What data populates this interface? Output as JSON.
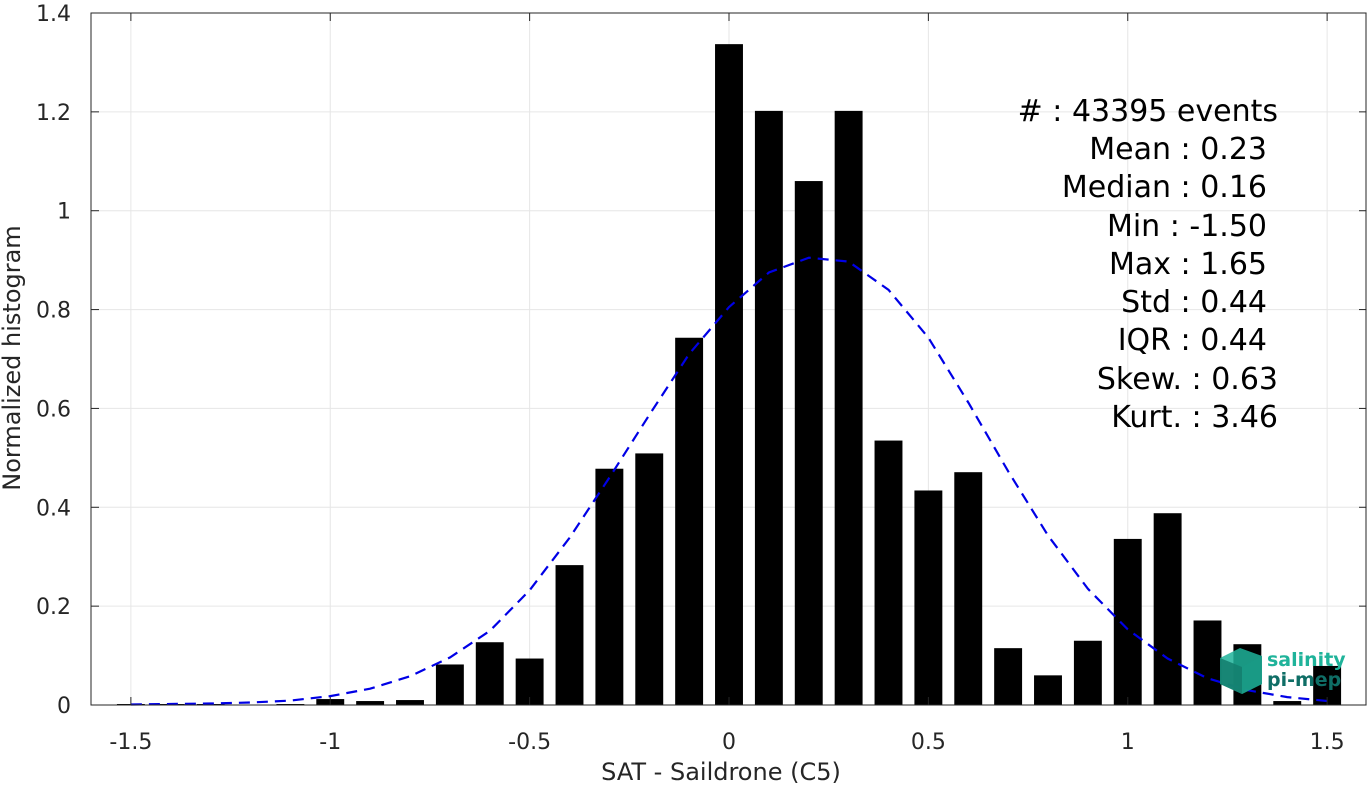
{
  "chart_data": {
    "type": "bar",
    "xlabel": "SAT - Saildrone (C5)",
    "ylabel": "Normalized histogram",
    "xlim": [
      -1.6,
      1.6
    ],
    "ylim": [
      0,
      1.4
    ],
    "xticks": [
      "-1.5",
      "-1",
      "-0.5",
      "0",
      "0.5",
      "1",
      "1.5"
    ],
    "yticks": [
      "0",
      "0.2",
      "0.4",
      "0.6",
      "0.8",
      "1",
      "1.2",
      "1.4"
    ],
    "grid": true,
    "bar_width": 0.07,
    "bars": [
      {
        "x": -1.5,
        "y": 0.002
      },
      {
        "x": -1.4,
        "y": 0.002
      },
      {
        "x": -1.3,
        "y": 0.002
      },
      {
        "x": -1.2,
        "y": 0.0
      },
      {
        "x": -1.1,
        "y": 0.002
      },
      {
        "x": -1.0,
        "y": 0.012
      },
      {
        "x": -0.9,
        "y": 0.008
      },
      {
        "x": -0.8,
        "y": 0.01
      },
      {
        "x": -0.7,
        "y": 0.082
      },
      {
        "x": -0.6,
        "y": 0.127
      },
      {
        "x": -0.5,
        "y": 0.094
      },
      {
        "x": -0.4,
        "y": 0.283
      },
      {
        "x": -0.3,
        "y": 0.478
      },
      {
        "x": -0.2,
        "y": 0.509
      },
      {
        "x": -0.1,
        "y": 0.743
      },
      {
        "x": 0.0,
        "y": 1.337
      },
      {
        "x": 0.1,
        "y": 1.202
      },
      {
        "x": 0.2,
        "y": 1.06
      },
      {
        "x": 0.3,
        "y": 1.202
      },
      {
        "x": 0.4,
        "y": 0.535
      },
      {
        "x": 0.5,
        "y": 0.434
      },
      {
        "x": 0.6,
        "y": 0.471
      },
      {
        "x": 0.7,
        "y": 0.115
      },
      {
        "x": 0.8,
        "y": 0.06
      },
      {
        "x": 0.9,
        "y": 0.13
      },
      {
        "x": 1.0,
        "y": 0.336
      },
      {
        "x": 1.1,
        "y": 0.388
      },
      {
        "x": 1.2,
        "y": 0.171
      },
      {
        "x": 1.3,
        "y": 0.123
      },
      {
        "x": 1.4,
        "y": 0.008
      },
      {
        "x": 1.5,
        "y": 0.079
      }
    ],
    "fit_curve": {
      "style": "dashed",
      "color": "#0000e6",
      "points": [
        [
          -1.5,
          0.001
        ],
        [
          -1.4,
          0.002
        ],
        [
          -1.3,
          0.003
        ],
        [
          -1.2,
          0.005
        ],
        [
          -1.1,
          0.009
        ],
        [
          -1.0,
          0.018
        ],
        [
          -0.9,
          0.033
        ],
        [
          -0.8,
          0.058
        ],
        [
          -0.7,
          0.096
        ],
        [
          -0.6,
          0.15
        ],
        [
          -0.5,
          0.232
        ],
        [
          -0.4,
          0.338
        ],
        [
          -0.3,
          0.46
        ],
        [
          -0.2,
          0.587
        ],
        [
          -0.1,
          0.71
        ],
        [
          0.0,
          0.805
        ],
        [
          0.1,
          0.875
        ],
        [
          0.2,
          0.905
        ],
        [
          0.3,
          0.897
        ],
        [
          0.4,
          0.84
        ],
        [
          0.5,
          0.743
        ],
        [
          0.6,
          0.612
        ],
        [
          0.7,
          0.473
        ],
        [
          0.8,
          0.343
        ],
        [
          0.9,
          0.235
        ],
        [
          1.0,
          0.153
        ],
        [
          1.1,
          0.094
        ],
        [
          1.2,
          0.054
        ],
        [
          1.3,
          0.03
        ],
        [
          1.4,
          0.016
        ],
        [
          1.5,
          0.008
        ]
      ]
    },
    "bar_color": "#000000",
    "grid_color": "#e6e6e6"
  },
  "stats": [
    "#  : 43395 events",
    "Mean : 0.23",
    "Median : 0.16",
    "Min : -1.50",
    "Max : 1.65",
    "Std : 0.44",
    "IQR : 0.44",
    "Skew. : 0.63",
    "Kurt. : 3.46"
  ],
  "logo": {
    "line1": "salinity",
    "line2": "pi-mep",
    "color1": "#1fb39a",
    "color2": "#0f6e66"
  }
}
